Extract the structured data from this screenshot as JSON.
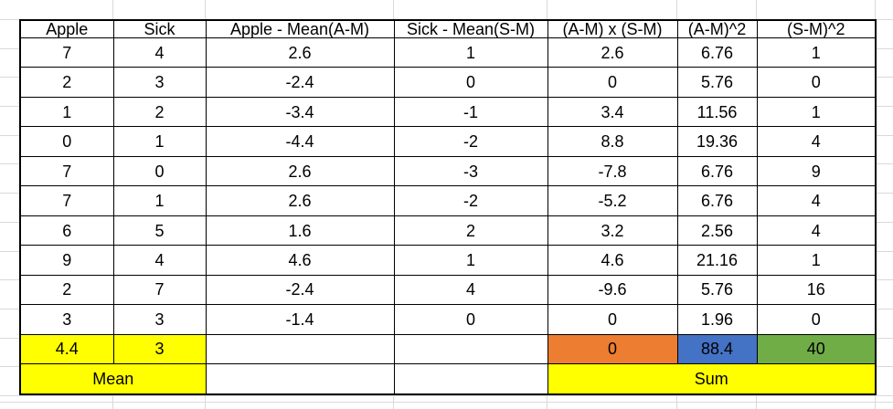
{
  "table": {
    "headers": [
      "Apple",
      "Sick",
      "Apple - Mean(A-M)",
      "Sick - Mean(S-M)",
      "(A-M) x (S-M)",
      "(A-M)^2",
      "(S-M)^2"
    ],
    "rows": [
      [
        "7",
        "4",
        "2.6",
        "1",
        "2.6",
        "6.76",
        "1"
      ],
      [
        "2",
        "3",
        "-2.4",
        "0",
        "0",
        "5.76",
        "0"
      ],
      [
        "1",
        "2",
        "-3.4",
        "-1",
        "3.4",
        "11.56",
        "1"
      ],
      [
        "0",
        "1",
        "-4.4",
        "-2",
        "8.8",
        "19.36",
        "4"
      ],
      [
        "7",
        "0",
        "2.6",
        "-3",
        "-7.8",
        "6.76",
        "9"
      ],
      [
        "7",
        "1",
        "2.6",
        "-2",
        "-5.2",
        "6.76",
        "4"
      ],
      [
        "6",
        "5",
        "1.6",
        "2",
        "3.2",
        "2.56",
        "4"
      ],
      [
        "9",
        "4",
        "4.6",
        "1",
        "4.6",
        "21.16",
        "1"
      ],
      [
        "2",
        "7",
        "-2.4",
        "4",
        "-9.6",
        "5.76",
        "16"
      ],
      [
        "3",
        "3",
        "-1.4",
        "0",
        "0",
        "1.96",
        "0"
      ]
    ],
    "summary": {
      "apple_mean": "4.4",
      "sick_mean": "3",
      "product_sum": "0",
      "am_sq_sum": "88.4",
      "sm_sq_sum": "40",
      "mean_label": "Mean",
      "sum_label": "Sum"
    },
    "colors": {
      "highlight_yellow": "#ffff00",
      "product_sum_orange": "#ed7d31",
      "am_sq_sum_blue": "#4472c4",
      "sm_sq_sum_green": "#70ad47",
      "grid_border_black": "#000000",
      "sheet_gridline_gray": "#d9d9d9"
    }
  }
}
